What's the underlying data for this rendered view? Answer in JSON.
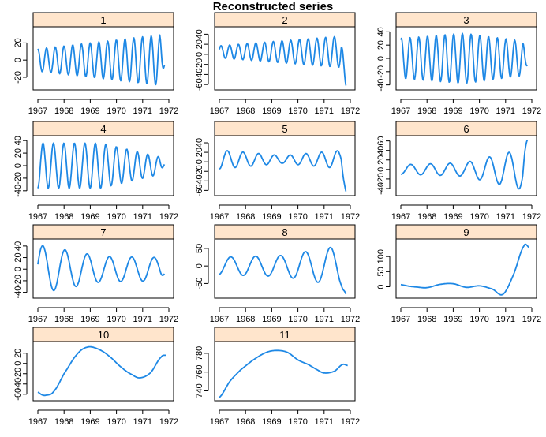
{
  "figure": {
    "title": "Reconstructed series",
    "colors": {
      "strip": "#FFE5CC",
      "line": "#1E88E5",
      "axis": "#000000"
    }
  },
  "chart_data": [
    {
      "type": "line",
      "panel_label": "1",
      "x_ticks": [
        "1967",
        "1968",
        "1969",
        "1970",
        "1971",
        "1972"
      ],
      "y_ticks": [
        20,
        0,
        -20
      ],
      "ylim": [
        -32,
        36
      ],
      "shape": {
        "kind": "sine",
        "period": 0.333,
        "phase": 1.6,
        "amp": [
          13,
          30
        ],
        "center": 0,
        "mod": true
      },
      "x": [
        1967,
        1967.5,
        1968,
        1968.5,
        1969,
        1969.5,
        1970,
        1970.5,
        1971,
        1971.5,
        1971.83
      ],
      "values": [
        -10,
        15,
        -18,
        18,
        -22,
        22,
        -25,
        26,
        -28,
        30,
        -6
      ]
    },
    {
      "type": "line",
      "panel_label": "2",
      "x_ticks": [
        "1967",
        "1968",
        "1969",
        "1970",
        "1971",
        "1972"
      ],
      "y_ticks": [
        40,
        20,
        0,
        -20,
        -40,
        -60
      ],
      "ylim": [
        -66,
        50
      ],
      "shape": {
        "kind": "sine",
        "period": 0.333,
        "phase": 0.4,
        "amp": [
          12,
          32
        ],
        "center": 5
      },
      "x": [
        1967,
        1967.5,
        1968,
        1968.5,
        1969,
        1969.5,
        1970,
        1970.5,
        1971,
        1971.5,
        1971.83
      ],
      "values": [
        5,
        15,
        -12,
        22,
        -15,
        28,
        -22,
        35,
        -30,
        42,
        -62
      ]
    },
    {
      "type": "line",
      "panel_label": "3",
      "x_ticks": [
        "1967",
        "1968",
        "1969",
        "1970",
        "1971",
        "1972"
      ],
      "y_ticks": [
        40,
        20,
        0,
        -20,
        -40
      ],
      "ylim": [
        -44,
        44
      ],
      "shape": {
        "kind": "sine",
        "period": 0.333,
        "phase": 1.2,
        "amp": [
          30,
          38,
          25
        ],
        "center": 0
      },
      "x": [
        1967,
        1967.5,
        1968,
        1968.5,
        1969,
        1969.5,
        1970,
        1970.5,
        1971,
        1971.5,
        1971.83
      ],
      "values": [
        20,
        -30,
        35,
        -38,
        38,
        -35,
        30,
        -28,
        25,
        -22,
        -10
      ]
    },
    {
      "type": "line",
      "panel_label": "4",
      "x_ticks": [
        "1967",
        "1968",
        "1969",
        "1970",
        "1971",
        "1972"
      ],
      "y_ticks": [
        40,
        20,
        0,
        -20,
        -40
      ],
      "ylim": [
        -44,
        44
      ],
      "shape": {
        "kind": "sine",
        "period": 0.4,
        "phase": -1.5,
        "amp": [
          36,
          36,
          12
        ],
        "center": 0
      },
      "x": [
        1967,
        1967.5,
        1968,
        1968.5,
        1969,
        1969.5,
        1970,
        1970.5,
        1971,
        1971.5,
        1971.83
      ],
      "values": [
        -38,
        35,
        -36,
        36,
        -36,
        36,
        -34,
        30,
        -22,
        10,
        2
      ]
    },
    {
      "type": "line",
      "panel_label": "5",
      "x_ticks": [
        "1967",
        "1968",
        "1969",
        "1970",
        "1971",
        "1972"
      ],
      "y_ticks": [
        40,
        20,
        0,
        -20,
        -40,
        -60
      ],
      "ylim": [
        -66,
        50
      ],
      "shape": {
        "kind": "sine",
        "period": 0.6,
        "phase": -1.6,
        "amp": [
          20,
          8,
          20
        ],
        "center": 5,
        "endSpike": true
      },
      "x": [
        1967,
        1967.5,
        1968,
        1968.5,
        1969,
        1969.5,
        1970,
        1970.5,
        1971,
        1971.5,
        1971.83
      ],
      "values": [
        -20,
        20,
        -5,
        10,
        5,
        8,
        -5,
        20,
        -10,
        30,
        -62
      ]
    },
    {
      "type": "line",
      "panel_label": "6",
      "x_ticks": [
        "1967",
        "1968",
        "1969",
        "1970",
        "1971",
        "1972"
      ],
      "y_ticks": [
        60,
        40,
        20,
        0,
        -20,
        -40
      ],
      "ylim": [
        -50,
        66
      ],
      "shape": {
        "kind": "sine",
        "period": 0.75,
        "phase": -1.6,
        "amp": [
          10,
          14,
          45
        ],
        "center": 0,
        "endSpike": true
      },
      "x": [
        1967,
        1967.5,
        1968,
        1968.5,
        1969,
        1969.5,
        1970,
        1970.5,
        1971,
        1971.5,
        1971.83
      ],
      "values": [
        -5,
        10,
        -10,
        12,
        -12,
        15,
        -15,
        30,
        -40,
        50,
        62
      ]
    },
    {
      "type": "line",
      "panel_label": "7",
      "x_ticks": [
        "1967",
        "1968",
        "1969",
        "1970",
        "1971",
        "1972"
      ],
      "y_ticks": [
        40,
        20,
        0,
        -20,
        -40
      ],
      "ylim": [
        -46,
        48
      ],
      "shape": {
        "kind": "sine",
        "period": 0.85,
        "phase": 0.2,
        "amp": [
          42,
          22,
          20
        ],
        "center": 0
      },
      "x": [
        1967,
        1967.5,
        1968,
        1968.5,
        1969,
        1969.5,
        1970,
        1970.5,
        1971,
        1971.5,
        1971.83
      ],
      "values": [
        5,
        42,
        -42,
        30,
        -25,
        25,
        -22,
        22,
        -20,
        20,
        -8
      ]
    },
    {
      "type": "line",
      "panel_label": "8",
      "x_ticks": [
        "1967",
        "1968",
        "1969",
        "1970",
        "1971",
        "1972"
      ],
      "y_ticks": [
        50,
        0,
        -50
      ],
      "ylim": [
        -85,
        70
      ],
      "shape": {
        "kind": "sine",
        "period": 0.95,
        "phase": -1.3,
        "amp": [
          25,
          30,
          60
        ],
        "center": 0,
        "endDrop": true
      },
      "x": [
        1967,
        1967.5,
        1968,
        1968.5,
        1969,
        1969.5,
        1970,
        1970.5,
        1971,
        1971.5,
        1971.83
      ],
      "values": [
        -25,
        20,
        -25,
        25,
        -30,
        30,
        -35,
        40,
        -50,
        60,
        -80
      ]
    },
    {
      "type": "line",
      "panel_label": "9",
      "x_ticks": [
        "1967",
        "1968",
        "1969",
        "1970",
        "1971",
        "1972"
      ],
      "y_ticks": [
        100,
        50,
        0
      ],
      "ylim": [
        -30,
        150
      ],
      "shape": {
        "kind": "spline"
      },
      "x": [
        1967,
        1967.3,
        1967.6,
        1968,
        1968.5,
        1969,
        1969.5,
        1970,
        1970.5,
        1970.9,
        1971.3,
        1971.7,
        1971.9
      ],
      "values": [
        7,
        2,
        -1,
        -3,
        8,
        10,
        -2,
        3,
        -8,
        -25,
        40,
        135,
        130
      ]
    },
    {
      "type": "line",
      "panel_label": "10",
      "x_ticks": [
        "1967",
        "1968",
        "1969",
        "1970",
        "1971",
        "1972"
      ],
      "y_ticks": [
        20,
        0,
        -20,
        -40,
        -60
      ],
      "ylim": [
        -68,
        38
      ],
      "shape": {
        "kind": "spline"
      },
      "x": [
        1967,
        1967.15,
        1967.3,
        1967.6,
        1968,
        1968.5,
        1968.9,
        1969.3,
        1969.7,
        1970.2,
        1970.6,
        1970.9,
        1971.3,
        1971.7,
        1971.9
      ],
      "values": [
        -56,
        -61,
        -62,
        -55,
        -20,
        18,
        32,
        28,
        15,
        -8,
        -22,
        -28,
        -18,
        12,
        16
      ]
    },
    {
      "type": "line",
      "panel_label": "11",
      "x_ticks": [
        "1967",
        "1968",
        "1969",
        "1970",
        "1971",
        "1972"
      ],
      "y_ticks": [
        780,
        760,
        740
      ],
      "ylim": [
        732,
        790
      ],
      "shape": {
        "kind": "spline"
      },
      "x": [
        1967,
        1967.4,
        1967.8,
        1968.3,
        1968.8,
        1969.2,
        1969.6,
        1970,
        1970.4,
        1970.7,
        1971,
        1971.4,
        1971.7,
        1971.9
      ],
      "values": [
        733,
        750,
        762,
        773,
        781,
        783,
        781,
        773,
        768,
        763,
        759,
        761,
        768,
        767
      ]
    }
  ]
}
